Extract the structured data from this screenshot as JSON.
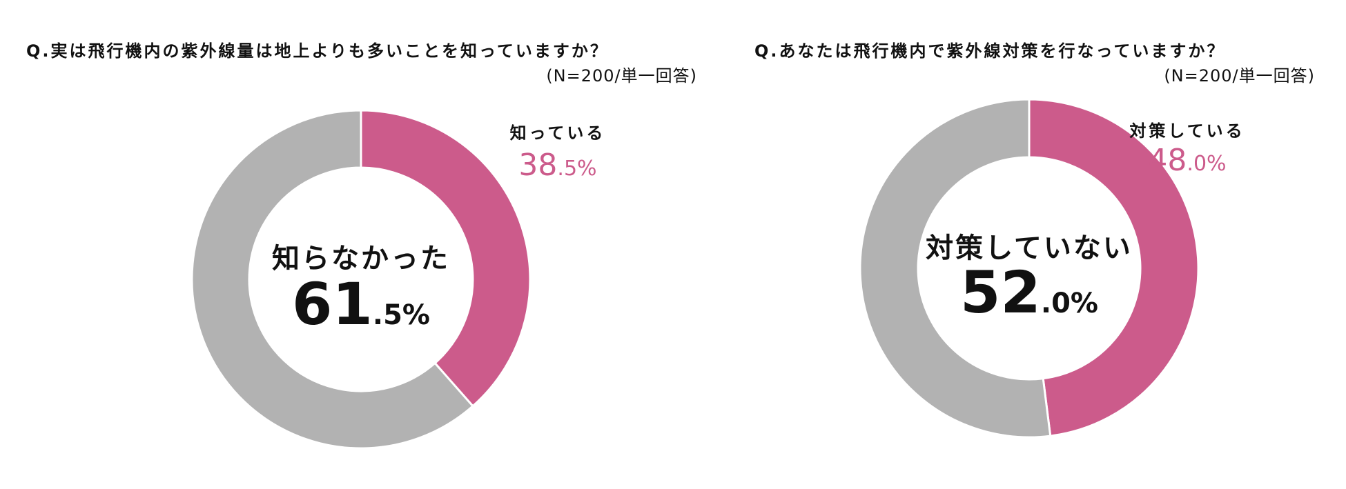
{
  "colors": {
    "highlight": "#cc5b8b",
    "other": "#b2b2b2",
    "text": "#111111"
  },
  "chart_data": [
    {
      "type": "pie",
      "title": "Q.実は飛行機内の紫外線量は地上よりも多いことを知っていますか？",
      "subtitle": "(N=200/単一回答)",
      "categories": [
        "知っている",
        "知らなかった"
      ],
      "values": [
        38.5,
        61.5
      ],
      "value_labels": [
        {
          "int": "38",
          "dec": ".5%"
        },
        {
          "int": "61",
          "dec": ".5%"
        }
      ],
      "unit": "%",
      "legend": "none"
    },
    {
      "type": "pie",
      "title": "Q.あなたは飛行機内で紫外線対策を行なっていますか？",
      "subtitle": "(N=200/単一回答)",
      "categories": [
        "対策している",
        "対策していない"
      ],
      "values": [
        48.0,
        52.0
      ],
      "value_labels": [
        {
          "int": "48",
          "dec": ".0%"
        },
        {
          "int": "52",
          "dec": ".0%"
        }
      ],
      "unit": "%",
      "legend": "none"
    }
  ]
}
